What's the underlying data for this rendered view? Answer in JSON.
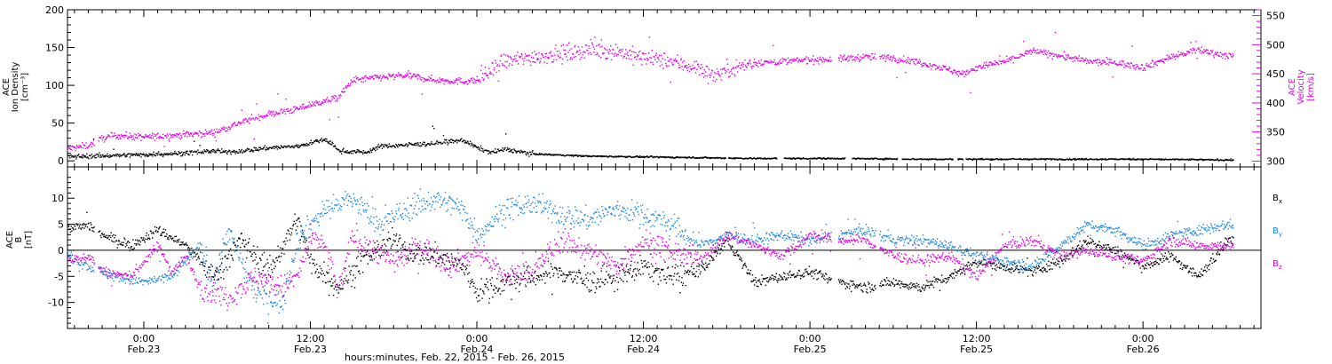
{
  "chart_data": [
    {
      "type": "scatter",
      "panel": "top",
      "y_left_label_lines": [
        "ACE",
        "Ion Density",
        "[cm⁻³]"
      ],
      "y_right_label_lines": [
        "ACE",
        "Velocity",
        "[km/s]"
      ],
      "ylim_left": [
        -8,
        200
      ],
      "yticks_left": [
        0,
        50,
        100,
        150,
        200
      ],
      "ylim_right": [
        290,
        560
      ],
      "yticks_right": [
        300,
        350,
        400,
        450,
        500,
        550
      ],
      "colors": {
        "density": "#000000",
        "velocity": "#e600e6"
      },
      "density_keypoints": [
        [
          -6,
          6
        ],
        [
          -2,
          8
        ],
        [
          0,
          9
        ],
        [
          3,
          11
        ],
        [
          5,
          14
        ],
        [
          6,
          12
        ],
        [
          9,
          18
        ],
        [
          11,
          20
        ],
        [
          13,
          29
        ],
        [
          13.6,
          22
        ],
        [
          14,
          14
        ],
        [
          16,
          12
        ],
        [
          17,
          20
        ],
        [
          19,
          22
        ],
        [
          21,
          24
        ],
        [
          23,
          28
        ],
        [
          24,
          18
        ],
        [
          25,
          12
        ],
        [
          26,
          16
        ],
        [
          28,
          10
        ],
        [
          32,
          7
        ],
        [
          36,
          6
        ],
        [
          40,
          5
        ],
        [
          44,
          4
        ],
        [
          50,
          4
        ],
        [
          56,
          3
        ],
        [
          62,
          3
        ],
        [
          68,
          3
        ],
        [
          72,
          3
        ],
        [
          78,
          2
        ],
        [
          82,
          2
        ]
      ],
      "density_gaps": [
        [
          41.9,
          42.1
        ],
        [
          45.6,
          46.1
        ],
        [
          50.5,
          51.0
        ],
        [
          54.3,
          54.6
        ],
        [
          58.3,
          58.6
        ],
        [
          59.0,
          59.2
        ]
      ],
      "velocity_keypoints": [
        [
          -6,
          320
        ],
        [
          -4,
          328
        ],
        [
          -3,
          340
        ],
        [
          -2,
          345
        ],
        [
          0,
          342
        ],
        [
          2,
          345
        ],
        [
          5,
          350
        ],
        [
          7,
          368
        ],
        [
          9,
          382
        ],
        [
          11,
          390
        ],
        [
          12,
          398
        ],
        [
          14,
          410
        ],
        [
          15,
          440
        ],
        [
          17,
          445
        ],
        [
          19,
          448
        ],
        [
          21,
          440
        ],
        [
          23,
          438
        ],
        [
          24,
          440
        ],
        [
          25,
          455
        ],
        [
          26,
          472
        ],
        [
          28,
          480
        ],
        [
          30,
          485
        ],
        [
          32,
          492
        ],
        [
          34,
          490
        ],
        [
          36,
          478
        ],
        [
          38,
          472
        ],
        [
          40,
          460
        ],
        [
          41,
          448
        ],
        [
          42,
          458
        ],
        [
          44,
          470
        ],
        [
          46,
          472
        ],
        [
          48,
          475
        ],
        [
          50,
          476
        ],
        [
          52,
          480
        ],
        [
          54,
          478
        ],
        [
          56,
          470
        ],
        [
          58,
          458
        ],
        [
          59,
          450
        ],
        [
          60,
          462
        ],
        [
          62,
          472
        ],
        [
          64,
          490
        ],
        [
          66,
          482
        ],
        [
          68,
          472
        ],
        [
          70,
          470
        ],
        [
          72,
          462
        ],
        [
          74,
          480
        ],
        [
          76,
          492
        ],
        [
          78,
          482
        ]
      ],
      "velocity_gaps": [
        [
          -3.6,
          -3.3
        ],
        [
          49.5,
          50.0
        ],
        [
          52.7,
          53.0
        ]
      ]
    },
    {
      "type": "scatter",
      "panel": "bottom",
      "y_label_lines": [
        "ACE",
        "B",
        "[nT]"
      ],
      "ylim": [
        -15,
        16
      ],
      "yticks": [
        -10,
        -5,
        0,
        5,
        10
      ],
      "series": [
        {
          "name": "Bx",
          "legend_main": "B",
          "legend_sub": "x",
          "color": "#000000",
          "keypoints": [
            [
              -6,
              4
            ],
            [
              -4,
              5
            ],
            [
              -3,
              3
            ],
            [
              -1,
              1
            ],
            [
              1,
              4
            ],
            [
              3,
              1
            ],
            [
              5,
              -5
            ],
            [
              7,
              2
            ],
            [
              9,
              -4
            ],
            [
              11,
              6
            ],
            [
              12,
              -2
            ],
            [
              14,
              -7
            ],
            [
              16,
              -1
            ],
            [
              18,
              2
            ],
            [
              19,
              0
            ],
            [
              21,
              -1
            ],
            [
              23,
              -3
            ],
            [
              24,
              -8
            ],
            [
              26,
              -6
            ],
            [
              28,
              -5
            ],
            [
              30,
              -4
            ],
            [
              32,
              -6
            ],
            [
              34,
              -5
            ],
            [
              36,
              -3
            ],
            [
              38,
              -5
            ],
            [
              40,
              -4
            ],
            [
              42,
              2
            ],
            [
              44,
              -6
            ],
            [
              46,
              -5
            ],
            [
              48,
              -4
            ],
            [
              50,
              -6
            ],
            [
              52,
              -7
            ],
            [
              54,
              -6
            ],
            [
              56,
              -7
            ],
            [
              58,
              -5
            ],
            [
              60,
              -2
            ],
            [
              62,
              -3
            ],
            [
              64,
              -4
            ],
            [
              66,
              -2
            ],
            [
              68,
              2
            ],
            [
              70,
              0
            ],
            [
              72,
              -3
            ],
            [
              74,
              -1
            ],
            [
              76,
              -5
            ],
            [
              78,
              2
            ]
          ]
        },
        {
          "name": "By",
          "legend_main": "B",
          "legend_sub": "y",
          "color": "#1a86e0",
          "keypoints": [
            [
              -6,
              0
            ],
            [
              -4,
              -3
            ],
            [
              -2,
              -5
            ],
            [
              0,
              -6
            ],
            [
              2,
              -5
            ],
            [
              4,
              1
            ],
            [
              5,
              -6
            ],
            [
              6,
              4
            ],
            [
              8,
              -8
            ],
            [
              10,
              -10
            ],
            [
              11,
              2
            ],
            [
              13,
              8
            ],
            [
              15,
              10
            ],
            [
              17,
              5
            ],
            [
              19,
              8
            ],
            [
              21,
              10
            ],
            [
              23,
              8
            ],
            [
              24,
              3
            ],
            [
              26,
              8
            ],
            [
              28,
              9
            ],
            [
              30,
              7
            ],
            [
              32,
              6
            ],
            [
              34,
              8
            ],
            [
              36,
              7
            ],
            [
              38,
              5
            ],
            [
              40,
              1
            ],
            [
              42,
              3
            ],
            [
              44,
              2
            ],
            [
              46,
              3
            ],
            [
              48,
              2
            ],
            [
              50,
              3
            ],
            [
              52,
              4
            ],
            [
              54,
              2
            ],
            [
              56,
              2
            ],
            [
              58,
              1
            ],
            [
              60,
              -1
            ],
            [
              62,
              -2
            ],
            [
              64,
              -3
            ],
            [
              66,
              1
            ],
            [
              68,
              5
            ],
            [
              70,
              4
            ],
            [
              72,
              1
            ],
            [
              74,
              3
            ],
            [
              76,
              4
            ],
            [
              78,
              5
            ]
          ]
        },
        {
          "name": "Bz",
          "legend_main": "B",
          "legend_sub": "z",
          "color": "#e600e6",
          "keypoints": [
            [
              -6,
              -2
            ],
            [
              -4,
              -1
            ],
            [
              -3,
              -4
            ],
            [
              -1,
              -5
            ],
            [
              1,
              1
            ],
            [
              2,
              -4
            ],
            [
              3,
              -1
            ],
            [
              4,
              -7
            ],
            [
              6,
              -9
            ],
            [
              8,
              -5
            ],
            [
              10,
              -7
            ],
            [
              11,
              -5
            ],
            [
              12,
              2
            ],
            [
              13,
              1
            ],
            [
              14,
              -8
            ],
            [
              15,
              3
            ],
            [
              16,
              1
            ],
            [
              18,
              -2
            ],
            [
              20,
              1
            ],
            [
              22,
              -3
            ],
            [
              24,
              0
            ],
            [
              26,
              -5
            ],
            [
              28,
              -4
            ],
            [
              30,
              2
            ],
            [
              32,
              0
            ],
            [
              34,
              -3
            ],
            [
              36,
              2
            ],
            [
              38,
              0
            ],
            [
              40,
              -2
            ],
            [
              42,
              3
            ],
            [
              44,
              1
            ],
            [
              46,
              -1
            ],
            [
              48,
              3
            ],
            [
              50,
              2
            ],
            [
              52,
              2
            ],
            [
              54,
              -1
            ],
            [
              56,
              -2
            ],
            [
              58,
              -1
            ],
            [
              60,
              -5
            ],
            [
              62,
              1
            ],
            [
              64,
              2
            ],
            [
              66,
              -1
            ],
            [
              68,
              0
            ],
            [
              70,
              -1
            ],
            [
              72,
              -2
            ],
            [
              74,
              2
            ],
            [
              76,
              1
            ],
            [
              78,
              1
            ]
          ]
        }
      ],
      "gaps": [
        [
          -3.6,
          -3.3
        ],
        [
          49.5,
          50.0
        ],
        [
          52.7,
          53.0
        ]
      ]
    }
  ],
  "x_axis": {
    "range_hours": [
      -5.5,
      80.5
    ],
    "data_end_hour": 78.5,
    "ticks_hours": [
      0,
      12,
      24,
      36,
      48,
      60,
      72
    ],
    "tick_labels": [
      {
        "time": "0:00",
        "date": "Feb.23"
      },
      {
        "time": "12:00",
        "date": "Feb.23"
      },
      {
        "time": "0:00",
        "date": "Feb.24"
      },
      {
        "time": "12:00",
        "date": "Feb.24"
      },
      {
        "time": "0:00",
        "date": "Feb.25"
      },
      {
        "time": "12:00",
        "date": "Feb.25"
      },
      {
        "time": "0:00",
        "date": "Feb.26"
      }
    ],
    "title": "hours:minutes, Feb. 22, 2015 - Feb. 26, 2015"
  }
}
